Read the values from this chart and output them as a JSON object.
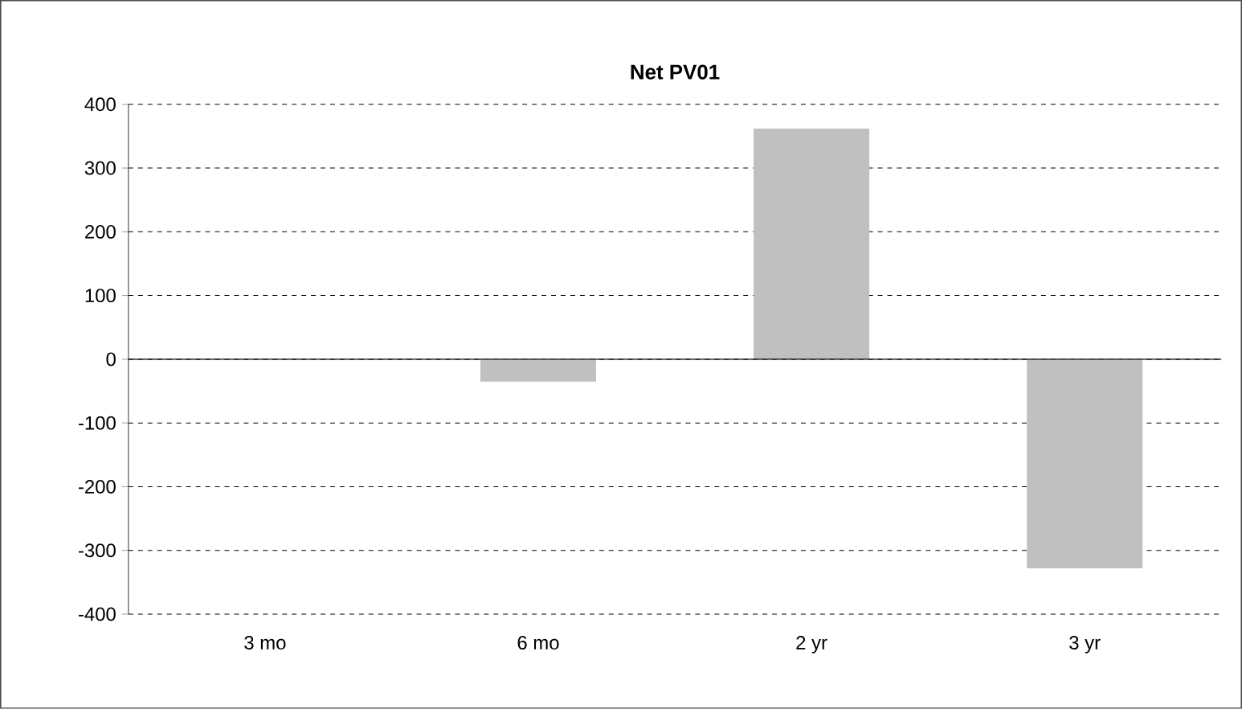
{
  "chart_data": {
    "type": "bar",
    "title": "Net PV01",
    "categories": [
      "3 mo",
      "6 mo",
      "2 yr",
      "3 yr"
    ],
    "values": [
      0,
      -35,
      362,
      -328
    ],
    "color": "#c0c0c0",
    "ylim": [
      -400,
      400
    ],
    "yticks": [
      -400,
      -300,
      -200,
      -100,
      0,
      100,
      200,
      300,
      400
    ],
    "grid": "y"
  }
}
